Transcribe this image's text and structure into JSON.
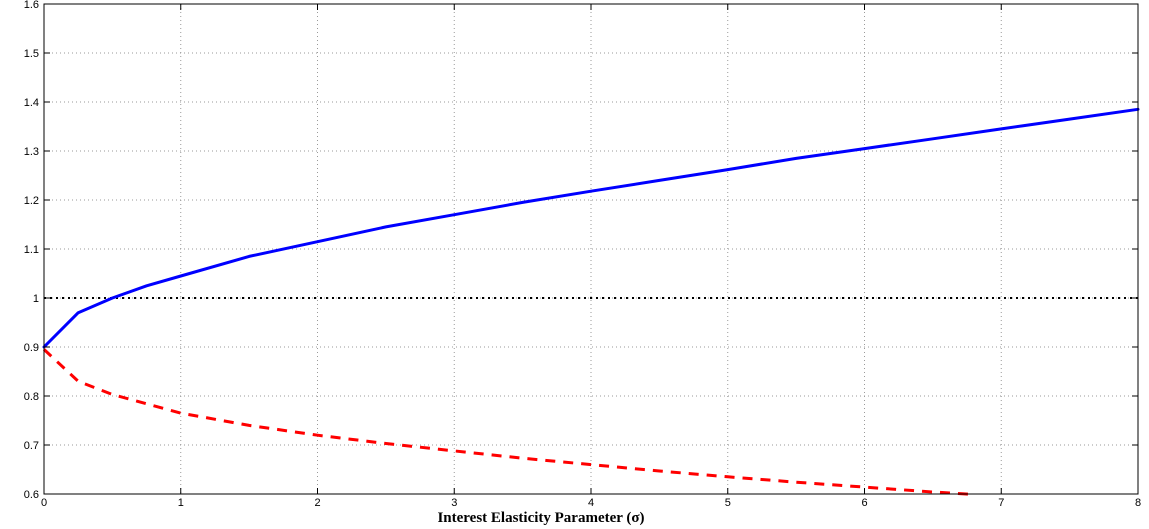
{
  "chart_data": {
    "type": "line",
    "title": "",
    "xlabel": "Interest Elasticity Parameter (σ)",
    "ylabel": "",
    "xlim": [
      0,
      8
    ],
    "ylim": [
      0.6,
      1.6
    ],
    "x_ticks": [
      "0",
      "1",
      "2",
      "3",
      "4",
      "5",
      "6",
      "7",
      "8"
    ],
    "y_ticks": [
      "0.6",
      "0.7",
      "0.8",
      "0.9",
      "1",
      "1.1",
      "1.2",
      "1.3",
      "1.4",
      "1.5",
      "1.6"
    ],
    "grid": true,
    "legend": "none",
    "reference_lines": [
      {
        "axis": "y",
        "value": 1.0,
        "style": "dotted",
        "color": "#000000"
      }
    ],
    "series": [
      {
        "color": "#0000ff",
        "style": "solid",
        "x": [
          0,
          0.25,
          0.5,
          0.75,
          1,
          1.5,
          2,
          2.5,
          3,
          3.5,
          4,
          4.5,
          5,
          5.5,
          6,
          6.5,
          7,
          7.5,
          8
        ],
        "y": [
          0.9,
          0.97,
          1.0,
          1.025,
          1.045,
          1.085,
          1.115,
          1.145,
          1.17,
          1.195,
          1.218,
          1.24,
          1.262,
          1.285,
          1.305,
          1.325,
          1.345,
          1.365,
          1.385
        ]
      },
      {
        "color": "#ff0000",
        "style": "dashed",
        "x": [
          0,
          0.25,
          0.5,
          1,
          1.5,
          2,
          2.5,
          3,
          3.5,
          4,
          4.5,
          5,
          5.5,
          6,
          6.5,
          6.8
        ],
        "y": [
          0.895,
          0.83,
          0.803,
          0.765,
          0.74,
          0.72,
          0.703,
          0.688,
          0.673,
          0.66,
          0.647,
          0.635,
          0.624,
          0.614,
          0.604,
          0.599
        ]
      }
    ]
  }
}
